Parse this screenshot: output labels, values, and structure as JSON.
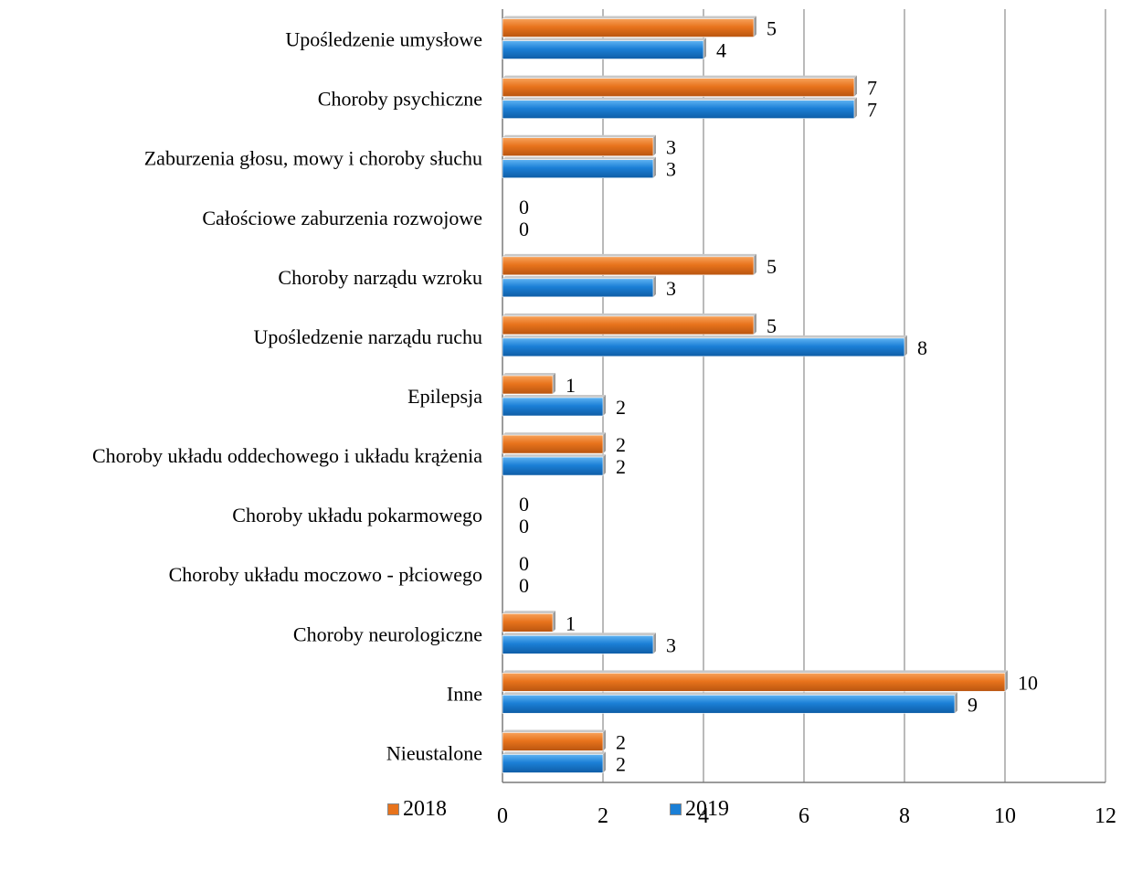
{
  "chart_data": {
    "type": "bar",
    "orientation": "horizontal",
    "categories": [
      "Upośledzenie umysłowe",
      "Choroby psychiczne",
      "Zaburzenia głosu, mowy i choroby słuchu",
      "Całościowe zaburzenia rozwojowe",
      "Choroby narządu wzroku",
      "Upośledzenie narządu ruchu",
      "Epilepsja",
      "Choroby układu oddechowego i układu krążenia",
      "Choroby układu pokarmowego",
      "Choroby układu moczowo - płciowego",
      "Choroby neurologiczne",
      "Inne",
      "Nieustalone"
    ],
    "series": [
      {
        "name": "2018",
        "color": "#E8731C",
        "values": [
          5,
          7,
          3,
          0,
          5,
          5,
          1,
          2,
          0,
          0,
          1,
          10,
          2
        ]
      },
      {
        "name": "2019",
        "color": "#1B7FD6",
        "values": [
          4,
          7,
          3,
          0,
          3,
          8,
          2,
          2,
          0,
          0,
          3,
          9,
          2
        ]
      }
    ],
    "xlim": [
      0,
      12
    ],
    "xticks": [
      "0",
      "2",
      "4",
      "6",
      "8",
      "10",
      "12"
    ],
    "grid": true,
    "legend": "bottom"
  }
}
